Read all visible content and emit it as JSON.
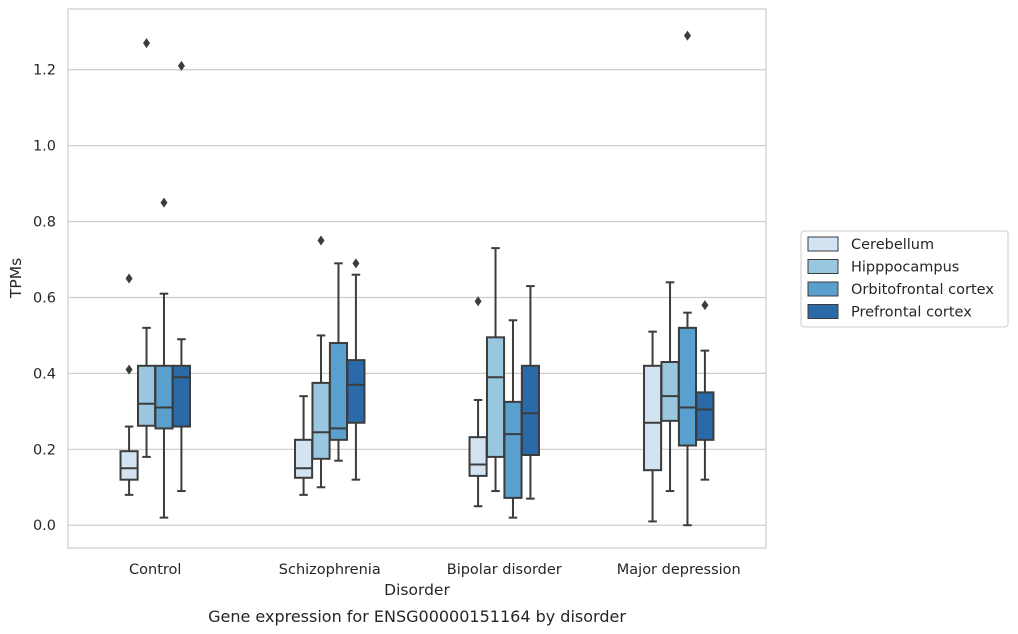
{
  "caption": "Gene expression for ENSG00000151164 by disorder",
  "chart_data": {
    "type": "box",
    "xlabel": "Disorder",
    "ylabel": "TPMs",
    "ylim": [
      -0.06,
      1.36
    ],
    "yticks": [
      0.0,
      0.2,
      0.4,
      0.6,
      0.8,
      1.0,
      1.2
    ],
    "ytick_labels": [
      "0.0",
      "0.2",
      "0.4",
      "0.6",
      "0.8",
      "1.0",
      "1.2"
    ],
    "grid": "horizontal",
    "legend_position": "right",
    "categories": [
      "Control",
      "Schizophrenia",
      "Bipolar disorder",
      "Major depression"
    ],
    "series": [
      {
        "name": "Cerebellum",
        "color": "#d3e3f2",
        "boxes": [
          {
            "whisker_low": 0.08,
            "q1": 0.12,
            "median": 0.15,
            "q3": 0.195,
            "whisker_high": 0.26,
            "outliers": [
              0.41,
              0.65
            ]
          },
          {
            "whisker_low": 0.08,
            "q1": 0.125,
            "median": 0.15,
            "q3": 0.225,
            "whisker_high": 0.34,
            "outliers": []
          },
          {
            "whisker_low": 0.05,
            "q1": 0.13,
            "median": 0.16,
            "q3": 0.232,
            "whisker_high": 0.33,
            "outliers": [
              0.59
            ]
          },
          {
            "whisker_low": 0.01,
            "q1": 0.145,
            "median": 0.27,
            "q3": 0.42,
            "whisker_high": 0.51,
            "outliers": []
          }
        ]
      },
      {
        "name": "Hipppocampus",
        "color": "#9ac7e0",
        "boxes": [
          {
            "whisker_low": 0.18,
            "q1": 0.262,
            "median": 0.32,
            "q3": 0.42,
            "whisker_high": 0.52,
            "outliers": [
              1.27
            ]
          },
          {
            "whisker_low": 0.1,
            "q1": 0.175,
            "median": 0.245,
            "q3": 0.375,
            "whisker_high": 0.5,
            "outliers": [
              0.75
            ]
          },
          {
            "whisker_low": 0.09,
            "q1": 0.18,
            "median": 0.39,
            "q3": 0.495,
            "whisker_high": 0.73,
            "outliers": []
          },
          {
            "whisker_low": 0.09,
            "q1": 0.275,
            "median": 0.34,
            "q3": 0.43,
            "whisker_high": 0.64,
            "outliers": []
          }
        ]
      },
      {
        "name": "Orbitofrontal cortex",
        "color": "#5aa0ce",
        "boxes": [
          {
            "whisker_low": 0.02,
            "q1": 0.255,
            "median": 0.31,
            "q3": 0.42,
            "whisker_high": 0.61,
            "outliers": [
              0.85
            ]
          },
          {
            "whisker_low": 0.17,
            "q1": 0.225,
            "median": 0.255,
            "q3": 0.48,
            "whisker_high": 0.69,
            "outliers": []
          },
          {
            "whisker_low": 0.02,
            "q1": 0.072,
            "median": 0.24,
            "q3": 0.325,
            "whisker_high": 0.54,
            "outliers": []
          },
          {
            "whisker_low": 0.0,
            "q1": 0.21,
            "median": 0.31,
            "q3": 0.52,
            "whisker_high": 0.56,
            "outliers": [
              1.29
            ]
          }
        ]
      },
      {
        "name": "Prefrontal cortex",
        "color": "#2a6aa8",
        "boxes": [
          {
            "whisker_low": 0.09,
            "q1": 0.26,
            "median": 0.39,
            "q3": 0.42,
            "whisker_high": 0.49,
            "outliers": [
              1.21
            ]
          },
          {
            "whisker_low": 0.12,
            "q1": 0.27,
            "median": 0.37,
            "q3": 0.435,
            "whisker_high": 0.66,
            "outliers": [
              0.69
            ]
          },
          {
            "whisker_low": 0.07,
            "q1": 0.185,
            "median": 0.295,
            "q3": 0.42,
            "whisker_high": 0.63,
            "outliers": []
          },
          {
            "whisker_low": 0.12,
            "q1": 0.225,
            "median": 0.305,
            "q3": 0.35,
            "whisker_high": 0.46,
            "outliers": [
              0.58
            ]
          }
        ]
      }
    ]
  }
}
